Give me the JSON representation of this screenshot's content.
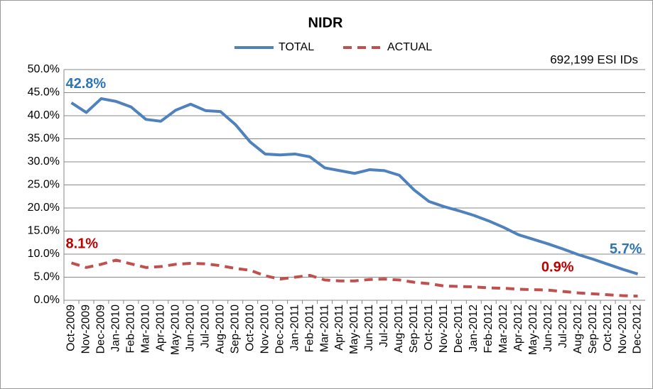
{
  "chart_data": {
    "type": "line",
    "title": "NIDR",
    "subtitle": "692,199 ESI IDs",
    "categories": [
      "Oct-2009",
      "Nov-2009",
      "Dec-2009",
      "Jan-2010",
      "Feb-2010",
      "Mar-2010",
      "Apr-2010",
      "May-2010",
      "Jun-2010",
      "Jul-2010",
      "Aug-2010",
      "Sep-2010",
      "Oct-2010",
      "Nov-2010",
      "Dec-2010",
      "Jan-2011",
      "Feb-2011",
      "Mar-2011",
      "Apr-2011",
      "May-2011",
      "Jun-2011",
      "Jul-2011",
      "Aug-2011",
      "Sep-2011",
      "Oct-2011",
      "Nov-2011",
      "Dec-2011",
      "Jan-2012",
      "Feb-2012",
      "Mar-2012",
      "Apr-2012",
      "May-2012",
      "Jun-2012",
      "Jul-2012",
      "Aug-2012",
      "Sep-2012",
      "Oct-2012",
      "Nov-2012",
      "Dec-2012"
    ],
    "series": [
      {
        "name": "TOTAL",
        "color": "#4f81bd",
        "dashed": false,
        "values": [
          42.8,
          40.7,
          43.7,
          43.1,
          41.9,
          39.2,
          38.8,
          41.2,
          42.5,
          41.1,
          40.9,
          38.1,
          34.3,
          31.7,
          31.5,
          31.7,
          31.1,
          28.7,
          28.1,
          27.5,
          28.3,
          28.1,
          27.1,
          23.9,
          21.4,
          20.3,
          19.4,
          18.4,
          17.2,
          15.8,
          14.2,
          13.2,
          12.2,
          11.1,
          9.9,
          8.9,
          7.8,
          6.7,
          5.7
        ],
        "value_labels": [
          "42.8%",
          null,
          null,
          null,
          null,
          null,
          null,
          null,
          null,
          null,
          null,
          null,
          null,
          null,
          null,
          null,
          null,
          null,
          null,
          null,
          null,
          null,
          null,
          null,
          null,
          null,
          null,
          null,
          null,
          null,
          null,
          null,
          null,
          null,
          null,
          null,
          null,
          null,
          "5.7%"
        ]
      },
      {
        "name": "ACTUAL",
        "color": "#c0504d",
        "dashed": true,
        "values": [
          8.1,
          7.1,
          7.8,
          8.7,
          7.9,
          7.1,
          7.3,
          7.8,
          8.0,
          7.9,
          7.5,
          6.9,
          6.5,
          5.3,
          4.6,
          5.0,
          5.4,
          4.4,
          4.2,
          4.2,
          4.5,
          4.6,
          4.4,
          3.9,
          3.6,
          3.1,
          3.0,
          2.9,
          2.7,
          2.6,
          2.4,
          2.3,
          2.2,
          1.9,
          1.6,
          1.4,
          1.2,
          1.0,
          0.9
        ],
        "value_labels": [
          "8.1%",
          null,
          null,
          null,
          null,
          null,
          null,
          null,
          null,
          null,
          null,
          null,
          null,
          null,
          null,
          null,
          null,
          null,
          null,
          null,
          null,
          null,
          null,
          null,
          null,
          null,
          null,
          null,
          null,
          null,
          null,
          null,
          null,
          null,
          null,
          null,
          null,
          null,
          "0.9%"
        ]
      }
    ],
    "ylim": [
      0,
      50
    ],
    "yticks": [
      {
        "value": 0,
        "label": "0.0%"
      },
      {
        "value": 5,
        "label": "5.0%"
      },
      {
        "value": 10,
        "label": "10.0%"
      },
      {
        "value": 15,
        "label": "15.0%"
      },
      {
        "value": 20,
        "label": "20.0%"
      },
      {
        "value": 25,
        "label": "25.0%"
      },
      {
        "value": 30,
        "label": "30.0%"
      },
      {
        "value": 35,
        "label": "35.0%"
      },
      {
        "value": 40,
        "label": "40.0%"
      },
      {
        "value": 45,
        "label": "45.0%"
      },
      {
        "value": 50,
        "label": "50.0%"
      }
    ],
    "grid": true,
    "legend": "top"
  }
}
